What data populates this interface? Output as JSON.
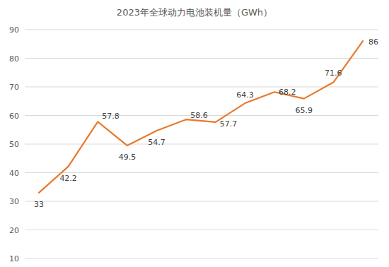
{
  "chart_data": {
    "type": "line",
    "title": "2023年全球动力电池装机量（GWh）",
    "categories": [
      null,
      null,
      null,
      null,
      null,
      null,
      null,
      null,
      null,
      null,
      null,
      null
    ],
    "values": [
      33,
      42.2,
      57.8,
      49.5,
      54.7,
      58.6,
      57.7,
      64.3,
      68.2,
      65.9,
      71.6,
      86
    ],
    "color": "#e8792b",
    "ylim": [
      10,
      90
    ],
    "yticks": [
      10,
      20,
      30,
      40,
      50,
      60,
      70,
      80,
      90
    ],
    "grid": true,
    "data_labels": true
  }
}
